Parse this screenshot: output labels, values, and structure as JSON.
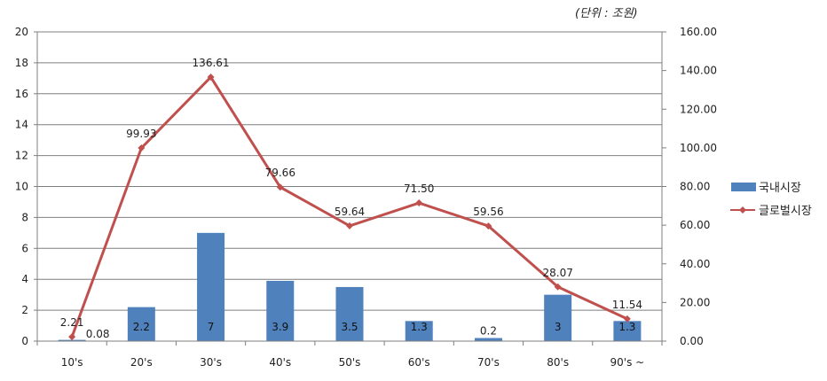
{
  "unit_note": "(단위 : 조원)",
  "colors": {
    "bar": "#4f81bd",
    "line": "#c0504d",
    "grid": "#7f7f7f"
  },
  "chart_data": {
    "type": "bar",
    "categories": [
      "10's",
      "20's",
      "30's",
      "40's",
      "50's",
      "60's",
      "70's",
      "80's",
      "90's ~"
    ],
    "y_left": {
      "min": 0,
      "max": 20,
      "step": 2,
      "ticks": [
        "0",
        "2",
        "4",
        "6",
        "8",
        "10",
        "12",
        "14",
        "16",
        "18",
        "20"
      ]
    },
    "y_right": {
      "min": 0,
      "max": 160,
      "step": 20,
      "ticks": [
        "0.00",
        "20.00",
        "40.00",
        "60.00",
        "80.00",
        "100.00",
        "120.00",
        "140.00",
        "160.00"
      ]
    },
    "series": [
      {
        "name": "국내시장",
        "type": "bar",
        "axis": "left",
        "values": [
          0.08,
          2.2,
          7,
          3.9,
          3.5,
          1.3,
          0.2,
          3,
          1.3
        ],
        "labels": [
          "0.08",
          "2.2",
          "7",
          "3.9",
          "3.5",
          "1.3",
          "0.2",
          "3",
          "1.3"
        ]
      },
      {
        "name": "글로벌시장",
        "type": "line",
        "axis": "right",
        "values": [
          2.21,
          99.93,
          136.61,
          79.66,
          59.64,
          71.5,
          59.56,
          28.07,
          11.54
        ],
        "labels": [
          "2.21",
          "99.93",
          "136.61",
          "79.66",
          "59.64",
          "71.50",
          "59.56",
          "28.07",
          "11.54"
        ]
      }
    ],
    "grid": true,
    "legend_position": "right"
  }
}
